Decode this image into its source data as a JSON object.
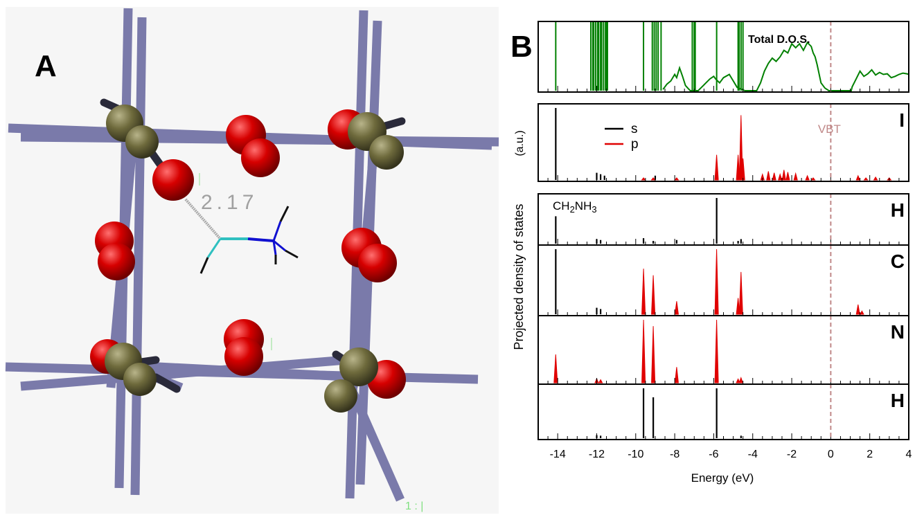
{
  "panel_a": {
    "label": "A",
    "distance_label": "2.17",
    "corner_label": "1 : |"
  },
  "panel_b": {
    "label": "B"
  },
  "colors": {
    "total": "#008000",
    "s": "#000000",
    "p": "#e00000",
    "vbt": "#c08888",
    "rod": "#7878a8",
    "oxygen": "#cc0000",
    "metal": "#6e6a3c"
  },
  "chart_data": {
    "type": "line",
    "xlabel": "Energy (eV)",
    "ylabel": "Projected density of states",
    "ylabel_unit": "(a.u.)",
    "xlim": [
      -15,
      4
    ],
    "xticks": [
      -14,
      -12,
      -10,
      -8,
      -6,
      -4,
      -2,
      0,
      2,
      4
    ],
    "vbt": {
      "x": 0,
      "label": "VBT"
    },
    "legend": [
      {
        "name": "s",
        "color": "#000000"
      },
      {
        "name": "p",
        "color": "#e00000"
      }
    ],
    "panels": [
      {
        "id": "total",
        "title": "Total D.O.S.",
        "series": [
          {
            "name": "total",
            "color": "#008000",
            "lines": [
              -14.1,
              -12.3,
              -12.2,
              -12.15,
              -12.05,
              -11.95,
              -11.9,
              -11.8,
              -11.75,
              -11.65,
              -11.55,
              -11.5,
              -11.45,
              -9.6,
              -9.15,
              -9.05,
              -8.95,
              -8.85,
              -8.7,
              -7.1,
              -7.0,
              -6.95,
              -5.85,
              -4.75,
              -4.7,
              -4.6,
              -4.5
            ],
            "curve": [
              [
                -8.6,
                0.02
              ],
              [
                -8.4,
                0.1
              ],
              [
                -8.2,
                0.15
              ],
              [
                -8.0,
                0.25
              ],
              [
                -7.9,
                0.2
              ],
              [
                -7.75,
                0.35
              ],
              [
                -7.6,
                0.22
              ],
              [
                -7.45,
                0.08
              ],
              [
                -7.3,
                0.03
              ],
              [
                -7.2,
                0.0
              ],
              [
                -6.8,
                0.0
              ],
              [
                -6.6,
                0.06
              ],
              [
                -6.4,
                0.12
              ],
              [
                -6.2,
                0.18
              ],
              [
                -6.0,
                0.22
              ],
              [
                -5.9,
                0.18
              ],
              [
                -5.7,
                0.12
              ],
              [
                -5.5,
                0.2
              ],
              [
                -5.2,
                0.25
              ],
              [
                -5.0,
                0.15
              ],
              [
                -4.8,
                0.05
              ],
              [
                -4.4,
                0.0
              ],
              [
                -3.8,
                0.0
              ],
              [
                -3.6,
                0.12
              ],
              [
                -3.4,
                0.3
              ],
              [
                -3.2,
                0.42
              ],
              [
                -3.0,
                0.5
              ],
              [
                -2.8,
                0.45
              ],
              [
                -2.6,
                0.52
              ],
              [
                -2.4,
                0.62
              ],
              [
                -2.2,
                0.58
              ],
              [
                -2.0,
                0.72
              ],
              [
                -1.8,
                0.66
              ],
              [
                -1.6,
                0.72
              ],
              [
                -1.4,
                0.62
              ],
              [
                -1.2,
                0.74
              ],
              [
                -1.0,
                0.68
              ],
              [
                -0.9,
                0.58
              ],
              [
                -0.8,
                0.52
              ],
              [
                -0.7,
                0.4
              ],
              [
                -0.5,
                0.12
              ],
              [
                -0.3,
                0.04
              ],
              [
                -0.1,
                0.0
              ],
              [
                1.05,
                0.0
              ],
              [
                1.1,
                0.06
              ],
              [
                1.3,
                0.18
              ],
              [
                1.5,
                0.3
              ],
              [
                1.7,
                0.22
              ],
              [
                1.9,
                0.26
              ],
              [
                2.1,
                0.32
              ],
              [
                2.3,
                0.24
              ],
              [
                2.5,
                0.28
              ],
              [
                2.7,
                0.25
              ],
              [
                2.9,
                0.26
              ],
              [
                3.1,
                0.2
              ],
              [
                3.3,
                0.22
              ],
              [
                3.5,
                0.25
              ],
              [
                3.7,
                0.27
              ],
              [
                3.9,
                0.26
              ],
              [
                4.0,
                0.25
              ]
            ]
          }
        ]
      },
      {
        "id": "I",
        "label": "I",
        "series": [
          {
            "name": "s",
            "color": "#000000",
            "peaks": [
              [
                -14.1,
                1.0
              ],
              [
                -12.0,
                0.1
              ],
              [
                -11.8,
                0.08
              ],
              [
                -11.6,
                0.06
              ],
              [
                -9.0,
                0.06
              ]
            ]
          },
          {
            "name": "p",
            "color": "#e00000",
            "peaks": [
              [
                -9.6,
                0.03
              ],
              [
                -9.1,
                0.03
              ],
              [
                -7.9,
                0.03
              ],
              [
                -5.85,
                0.35
              ],
              [
                -4.75,
                0.35
              ],
              [
                -4.6,
                0.9
              ],
              [
                -4.5,
                0.3
              ],
              [
                -3.5,
                0.08
              ],
              [
                -3.2,
                0.12
              ],
              [
                -2.9,
                0.1
              ],
              [
                -2.6,
                0.08
              ],
              [
                -2.4,
                0.14
              ],
              [
                -2.2,
                0.11
              ],
              [
                -1.8,
                0.09
              ],
              [
                -1.2,
                0.06
              ],
              [
                -0.9,
                0.03
              ],
              [
                1.4,
                0.06
              ],
              [
                1.8,
                0.03
              ],
              [
                2.3,
                0.04
              ],
              [
                3.0,
                0.03
              ]
            ]
          }
        ]
      },
      {
        "id": "H_CH2",
        "label": "H",
        "annotation": "CH2NH3",
        "series": [
          {
            "name": "s",
            "color": "#000000",
            "peaks": [
              [
                -14.1,
                0.6
              ],
              [
                -12.0,
                0.1
              ],
              [
                -11.8,
                0.08
              ],
              [
                -9.6,
                0.12
              ],
              [
                -9.1,
                0.06
              ],
              [
                -7.9,
                0.08
              ],
              [
                -5.85,
                1.0
              ],
              [
                -4.75,
                0.06
              ],
              [
                -4.6,
                0.1
              ]
            ]
          },
          {
            "name": "p",
            "color": "#e00000",
            "peaks": []
          }
        ]
      },
      {
        "id": "C",
        "label": "C",
        "series": [
          {
            "name": "s",
            "color": "#000000",
            "peaks": [
              [
                -14.1,
                1.0
              ],
              [
                -12.0,
                0.1
              ],
              [
                -11.8,
                0.08
              ],
              [
                -9.6,
                0.05
              ],
              [
                -4.6,
                0.05
              ]
            ]
          },
          {
            "name": "p",
            "color": "#e00000",
            "peaks": [
              [
                -9.6,
                0.7
              ],
              [
                -9.1,
                0.6
              ],
              [
                -7.9,
                0.2
              ],
              [
                -5.85,
                1.0
              ],
              [
                -4.75,
                0.25
              ],
              [
                -4.6,
                0.65
              ],
              [
                1.4,
                0.15
              ],
              [
                1.6,
                0.05
              ]
            ]
          }
        ]
      },
      {
        "id": "N",
        "label": "N",
        "series": [
          {
            "name": "s",
            "color": "#000000",
            "peaks": [
              [
                -12.0,
                0.06
              ],
              [
                -4.6,
                0.05
              ]
            ]
          },
          {
            "name": "p",
            "color": "#e00000",
            "peaks": [
              [
                -14.1,
                0.45
              ],
              [
                -12.0,
                0.06
              ],
              [
                -11.8,
                0.05
              ],
              [
                -9.6,
                1.0
              ],
              [
                -9.1,
                0.9
              ],
              [
                -7.9,
                0.25
              ],
              [
                -5.85,
                1.0
              ],
              [
                -4.75,
                0.06
              ],
              [
                -4.6,
                0.08
              ]
            ]
          }
        ]
      },
      {
        "id": "H_NH3",
        "label": "H",
        "series": [
          {
            "name": "s",
            "color": "#000000",
            "peaks": [
              [
                -12.0,
                0.06
              ],
              [
                -11.8,
                0.05
              ],
              [
                -9.6,
                1.0
              ],
              [
                -9.1,
                0.82
              ],
              [
                -5.85,
                1.0
              ],
              [
                -4.6,
                0.05
              ]
            ]
          },
          {
            "name": "p",
            "color": "#e00000",
            "peaks": []
          }
        ]
      }
    ]
  }
}
